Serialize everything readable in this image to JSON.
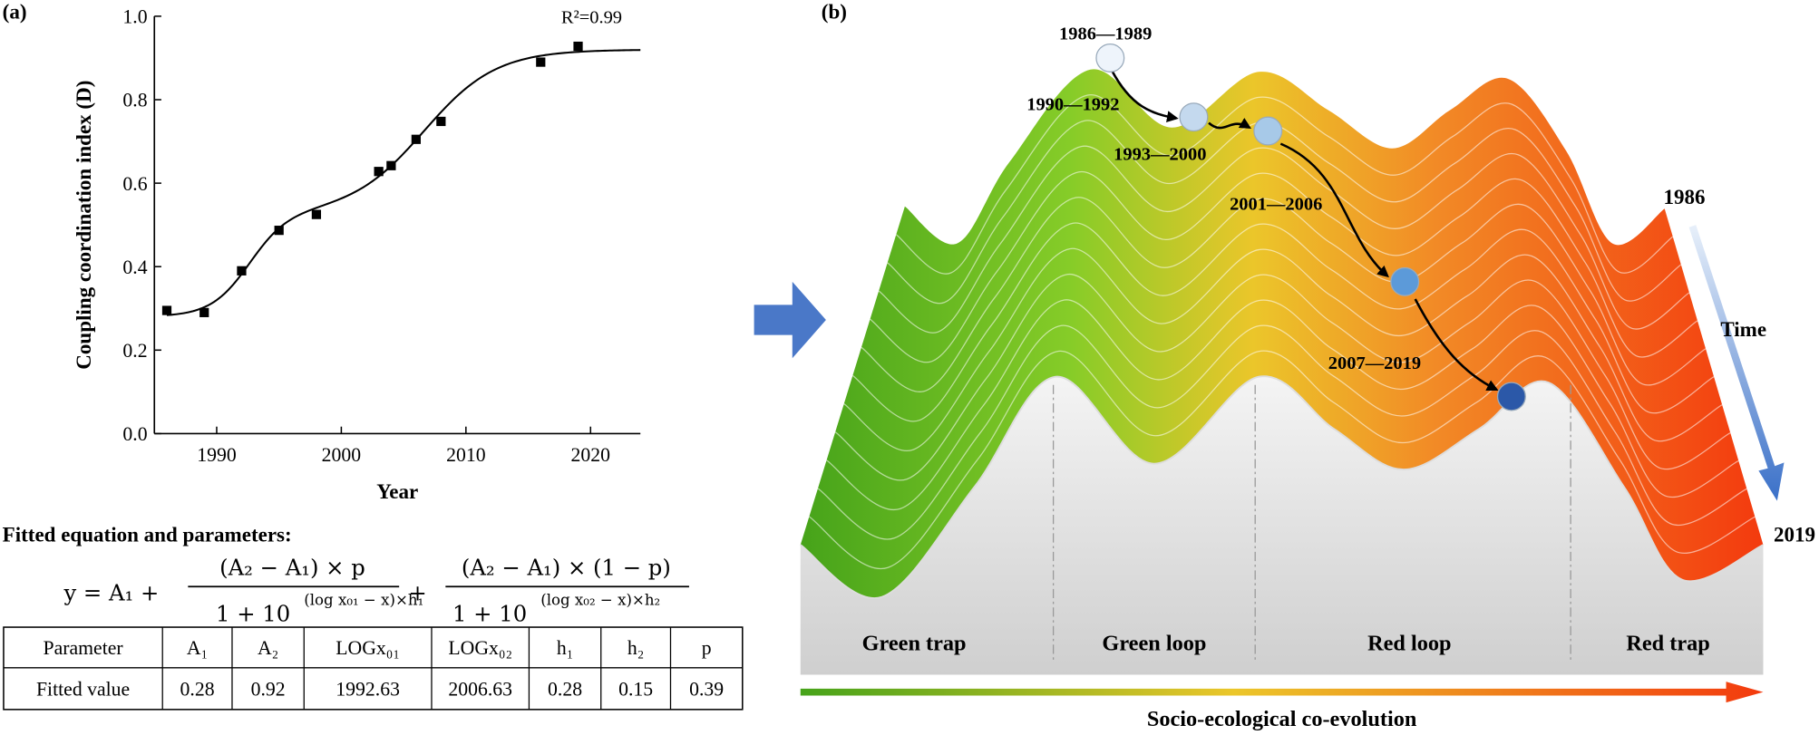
{
  "panel_labels": [
    "(a)",
    "(b)"
  ],
  "chart_data": {
    "type": "scatter",
    "x": [
      1986,
      1989,
      1992,
      1995,
      1998,
      2003,
      2004,
      2006,
      2008,
      2016,
      2019
    ],
    "values": [
      0.295,
      0.29,
      0.39,
      0.487,
      0.525,
      0.628,
      0.642,
      0.705,
      0.748,
      0.89,
      0.928
    ],
    "color": "#000000",
    "xlim": [
      1985,
      2024
    ],
    "ylim": [
      0,
      1
    ],
    "xticks": [
      1990,
      2000,
      2010,
      2020
    ],
    "yticks": [
      {
        "value": 0,
        "label": "0.0"
      },
      0.2,
      0.4,
      0.6,
      0.8,
      {
        "value": 1,
        "label": "1.0"
      }
    ],
    "xlabel": "Year",
    "ylabel": "Coupling coordination index (D)",
    "annotation": "R²=0.99"
  },
  "equation_title": "Fitted equation and parameters:",
  "equation": {
    "lhs": "y = A₁ +",
    "frac1_num": "(A₂ − A₁) × p",
    "frac1_den": "1 + 10",
    "frac1_exp": "(log x₀₁ − x)×h₁",
    "plus": "+",
    "frac2_num": "(A₂ − A₁) × (1 − p)",
    "frac2_den": "1 + 10",
    "frac2_exp": "(log x₀₂ − x)×h₂"
  },
  "table": {
    "header": [
      "Parameter",
      "A₁",
      "A₂",
      "LOGx₀₁",
      "LOGx₀₂",
      "h₁",
      "h₂",
      "p"
    ],
    "rows": [
      [
        "Fitted value",
        0.28,
        0.92,
        1992.63,
        2006.63,
        0.28,
        0.15,
        0.39
      ]
    ]
  },
  "diagram": {
    "periods": [
      "1986—1989",
      "1990—1992",
      "1993—2000",
      "2001—2006",
      "2007—2019"
    ],
    "time_start": "1986",
    "time_label": "Time",
    "time_end": "2019",
    "regions": [
      "Green trap",
      "Green loop",
      "Red loop",
      "Red trap"
    ],
    "axis_label": "Socio-ecological co-evolution"
  }
}
